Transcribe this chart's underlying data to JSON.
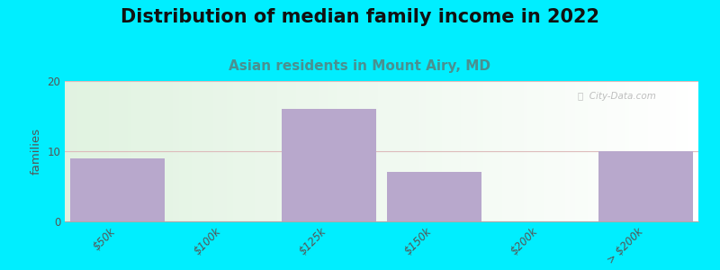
{
  "title": "Distribution of median family income in 2022",
  "subtitle": "Asian residents in Mount Airy, MD",
  "categories": [
    "$50k",
    "$100k",
    "$125k",
    "$150k",
    "$200k",
    "> $200k"
  ],
  "values": [
    9,
    0,
    16,
    7,
    0,
    10
  ],
  "bar_color": "#b8a8cc",
  "background_outer": "#00eeff",
  "ylabel": "families",
  "ylim": [
    0,
    20
  ],
  "yticks": [
    0,
    10,
    20
  ],
  "watermark": "ⓘ  City-Data.com",
  "title_fontsize": 15,
  "subtitle_fontsize": 11,
  "subtitle_color": "#4a9090",
  "grid_color": "#ddbbbb",
  "tick_color": "#555555",
  "tick_fontsize": 8.5
}
